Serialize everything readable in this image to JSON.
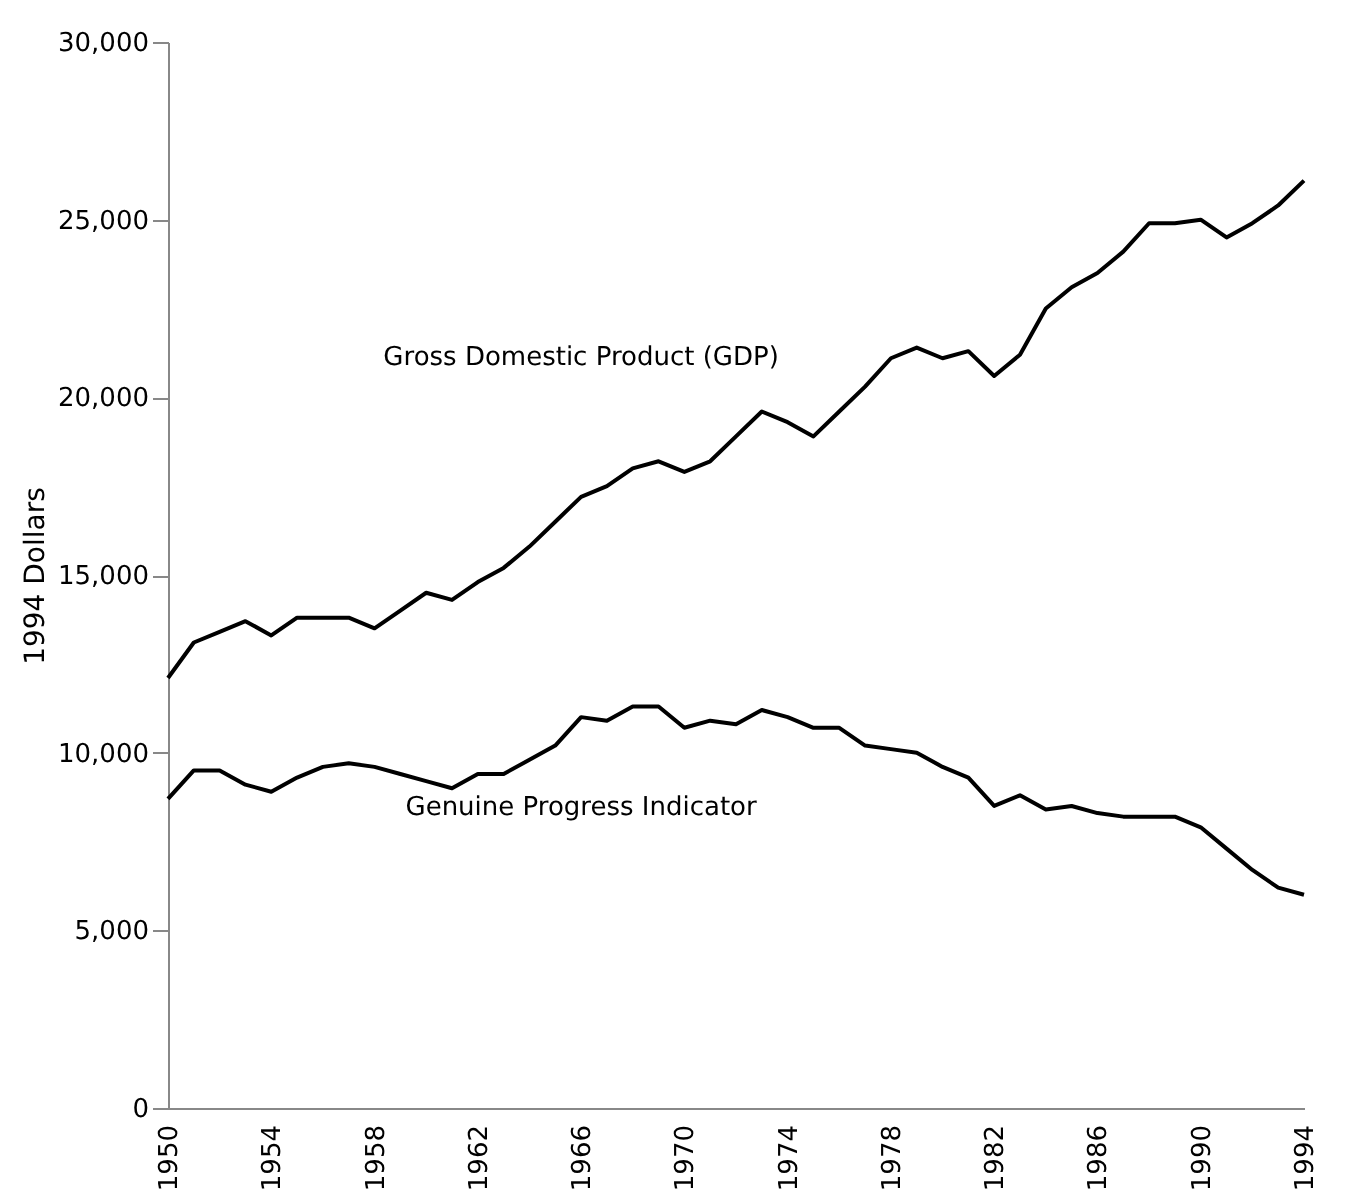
{
  "chart_data": {
    "type": "line",
    "ylabel": "1994 Dollars",
    "x": [
      1950,
      1951,
      1952,
      1953,
      1954,
      1955,
      1956,
      1957,
      1958,
      1959,
      1960,
      1961,
      1962,
      1963,
      1964,
      1965,
      1966,
      1967,
      1968,
      1969,
      1970,
      1971,
      1972,
      1973,
      1974,
      1975,
      1976,
      1977,
      1978,
      1979,
      1980,
      1981,
      1982,
      1983,
      1984,
      1985,
      1986,
      1987,
      1988,
      1989,
      1990,
      1991,
      1992,
      1993,
      1994
    ],
    "series": [
      {
        "name": "Gross Domestic Product (GDP)",
        "color": "#000000",
        "values": [
          12100,
          13100,
          13400,
          13700,
          13300,
          13800,
          13800,
          13800,
          13500,
          14000,
          14500,
          14300,
          14800,
          15200,
          15800,
          16500,
          17200,
          17500,
          18000,
          18200,
          17900,
          18200,
          18900,
          19600,
          19300,
          18900,
          19600,
          20300,
          21100,
          21400,
          21100,
          21300,
          20600,
          21200,
          22500,
          23100,
          23500,
          24100,
          24900,
          24900,
          25000,
          24500,
          24900,
          25400,
          26100
        ]
      },
      {
        "name": "Genuine Progress Indicator",
        "color": "#000000",
        "values": [
          8700,
          9500,
          9500,
          9100,
          8900,
          9300,
          9600,
          9700,
          9600,
          9400,
          9200,
          9000,
          9400,
          9400,
          9800,
          10200,
          11000,
          10900,
          11300,
          11300,
          10700,
          10900,
          10800,
          11200,
          11000,
          10700,
          10700,
          10200,
          10100,
          10000,
          9600,
          9300,
          8500,
          8800,
          8400,
          8500,
          8300,
          8200,
          8200,
          8200,
          7900,
          7300,
          6700,
          6200,
          6000
        ]
      }
    ],
    "xlim": [
      1950,
      1994
    ],
    "xticks": [
      1950,
      1954,
      1958,
      1962,
      1966,
      1970,
      1974,
      1978,
      1982,
      1986,
      1990,
      1994
    ],
    "ylim": [
      0,
      30000
    ],
    "yticks": [
      0,
      {
        "value": 5000,
        "label": "5,000"
      },
      {
        "value": 10000,
        "label": "10,000"
      },
      {
        "value": 15000,
        "label": "15,000"
      },
      {
        "value": 20000,
        "label": "20,000"
      },
      {
        "value": 25000,
        "label": "25,000"
      },
      {
        "value": 30000,
        "label": "30,000"
      }
    ],
    "grid": false,
    "legend": false,
    "marker": "none",
    "line_style": "solid"
  }
}
